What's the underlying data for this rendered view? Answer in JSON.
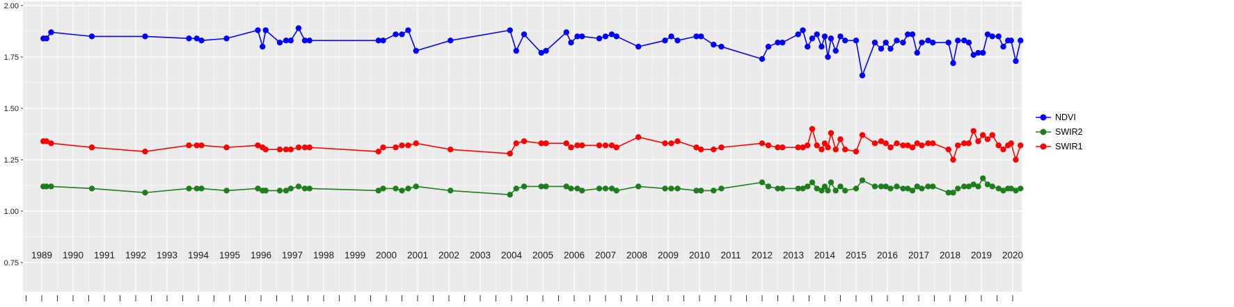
{
  "figure": {
    "background": "#FFFFFF"
  },
  "chart_data": {
    "type": "line",
    "title": "",
    "xlabel": "",
    "ylabel": "",
    "grid": true,
    "panel_bg": "#EBEBEB",
    "grid_color": "#FFFFFF",
    "axis_text_color": "#1A1A1A",
    "tick_color": "#333333",
    "legend_position": "right",
    "legend_items": [
      "NDVI",
      "SWIR2",
      "SWIR1"
    ],
    "xlim": [
      1988.4,
      2020.6
    ],
    "ylim": [
      0.73,
      2.02
    ],
    "x_tick_labels": [
      "1989",
      "1990",
      "1991",
      "1992",
      "1993",
      "1994",
      "1995",
      "1996",
      "1997",
      "1998",
      "1999",
      "2000",
      "2001",
      "2002",
      "2003",
      "2004",
      "2005",
      "2006",
      "2007",
      "2008",
      "2009",
      "2010",
      "2011",
      "2012",
      "2013",
      "2014",
      "2015",
      "2016",
      "2017",
      "2018",
      "2019",
      "2020"
    ],
    "y_ticks": [
      0.75,
      1.0,
      1.25,
      1.5,
      1.75,
      2.0
    ],
    "y_tick_labels": [
      "0.75",
      "1.00",
      "1.25",
      "1.50",
      "1.75",
      "2.00"
    ],
    "x": [
      1989.05,
      1989.15,
      1989.3,
      1990.6,
      1992.3,
      1993.7,
      1993.95,
      1994.1,
      1994.9,
      1995.9,
      1996.05,
      1996.15,
      1996.6,
      1996.8,
      1996.95,
      1997.2,
      1997.4,
      1997.55,
      1999.75,
      1999.9,
      2000.3,
      2000.5,
      2000.7,
      2000.95,
      2002.05,
      2003.95,
      2004.15,
      2004.4,
      2004.95,
      2005.1,
      2005.75,
      2005.9,
      2006.1,
      2006.25,
      2006.8,
      2007.0,
      2007.2,
      2007.35,
      2008.05,
      2008.9,
      2009.1,
      2009.3,
      2009.9,
      2010.05,
      2010.45,
      2010.7,
      2012.0,
      2012.2,
      2012.5,
      2012.65,
      2013.15,
      2013.3,
      2013.45,
      2013.6,
      2013.75,
      2013.9,
      2014.0,
      2014.1,
      2014.2,
      2014.35,
      2014.5,
      2014.65,
      2015.0,
      2015.2,
      2015.6,
      2015.8,
      2015.95,
      2016.1,
      2016.3,
      2016.5,
      2016.65,
      2016.8,
      2016.95,
      2017.1,
      2017.3,
      2017.45,
      2017.95,
      2018.1,
      2018.25,
      2018.45,
      2018.6,
      2018.75,
      2018.9,
      2019.05,
      2019.2,
      2019.35,
      2019.55,
      2019.7,
      2019.85,
      2019.95,
      2020.1,
      2020.25
    ],
    "series": [
      {
        "name": "NDVI",
        "color": "#0000FF",
        "values": [
          1.84,
          1.84,
          1.87,
          1.85,
          1.85,
          1.84,
          1.84,
          1.83,
          1.84,
          1.88,
          1.8,
          1.88,
          1.82,
          1.83,
          1.83,
          1.89,
          1.83,
          1.83,
          1.83,
          1.83,
          1.86,
          1.86,
          1.88,
          1.78,
          1.83,
          1.88,
          1.78,
          1.86,
          1.77,
          1.78,
          1.87,
          1.82,
          1.85,
          1.85,
          1.84,
          1.85,
          1.86,
          1.85,
          1.8,
          1.83,
          1.85,
          1.83,
          1.85,
          1.85,
          1.81,
          1.8,
          1.74,
          1.8,
          1.82,
          1.82,
          1.86,
          1.88,
          1.8,
          1.84,
          1.86,
          1.8,
          1.85,
          1.75,
          1.84,
          1.78,
          1.85,
          1.83,
          1.83,
          1.66,
          1.82,
          1.79,
          1.82,
          1.79,
          1.83,
          1.82,
          1.86,
          1.86,
          1.77,
          1.82,
          1.83,
          1.82,
          1.82,
          1.72,
          1.83,
          1.83,
          1.82,
          1.76,
          1.77,
          1.77,
          1.86,
          1.85,
          1.85,
          1.8,
          1.83,
          1.83,
          1.73,
          1.83
        ]
      },
      {
        "name": "SWIR2",
        "color": "#1E7E1E",
        "values": [
          1.12,
          1.12,
          1.12,
          1.11,
          1.09,
          1.11,
          1.11,
          1.11,
          1.1,
          1.11,
          1.1,
          1.1,
          1.1,
          1.1,
          1.11,
          1.12,
          1.11,
          1.11,
          1.1,
          1.11,
          1.11,
          1.1,
          1.11,
          1.12,
          1.1,
          1.08,
          1.11,
          1.12,
          1.12,
          1.12,
          1.12,
          1.11,
          1.11,
          1.1,
          1.11,
          1.11,
          1.11,
          1.1,
          1.12,
          1.11,
          1.11,
          1.11,
          1.1,
          1.1,
          1.1,
          1.11,
          1.14,
          1.12,
          1.11,
          1.11,
          1.11,
          1.11,
          1.12,
          1.14,
          1.11,
          1.1,
          1.12,
          1.1,
          1.14,
          1.1,
          1.12,
          1.1,
          1.11,
          1.15,
          1.12,
          1.12,
          1.12,
          1.11,
          1.12,
          1.11,
          1.11,
          1.1,
          1.12,
          1.11,
          1.12,
          1.12,
          1.09,
          1.09,
          1.11,
          1.12,
          1.12,
          1.13,
          1.12,
          1.16,
          1.13,
          1.12,
          1.11,
          1.1,
          1.11,
          1.11,
          1.1,
          1.11
        ]
      },
      {
        "name": "SWIR1",
        "color": "#FF0000",
        "values": [
          1.34,
          1.34,
          1.33,
          1.31,
          1.29,
          1.32,
          1.32,
          1.32,
          1.31,
          1.32,
          1.31,
          1.3,
          1.3,
          1.3,
          1.3,
          1.31,
          1.31,
          1.31,
          1.29,
          1.31,
          1.31,
          1.32,
          1.32,
          1.33,
          1.3,
          1.28,
          1.33,
          1.34,
          1.33,
          1.33,
          1.33,
          1.31,
          1.32,
          1.32,
          1.32,
          1.32,
          1.32,
          1.31,
          1.36,
          1.33,
          1.33,
          1.34,
          1.31,
          1.3,
          1.3,
          1.31,
          1.33,
          1.32,
          1.31,
          1.31,
          1.31,
          1.31,
          1.32,
          1.4,
          1.32,
          1.3,
          1.33,
          1.31,
          1.38,
          1.3,
          1.35,
          1.3,
          1.29,
          1.37,
          1.33,
          1.34,
          1.33,
          1.31,
          1.33,
          1.32,
          1.32,
          1.31,
          1.33,
          1.32,
          1.33,
          1.33,
          1.3,
          1.25,
          1.32,
          1.33,
          1.33,
          1.39,
          1.34,
          1.37,
          1.35,
          1.37,
          1.32,
          1.3,
          1.32,
          1.33,
          1.25,
          1.32
        ]
      }
    ]
  }
}
